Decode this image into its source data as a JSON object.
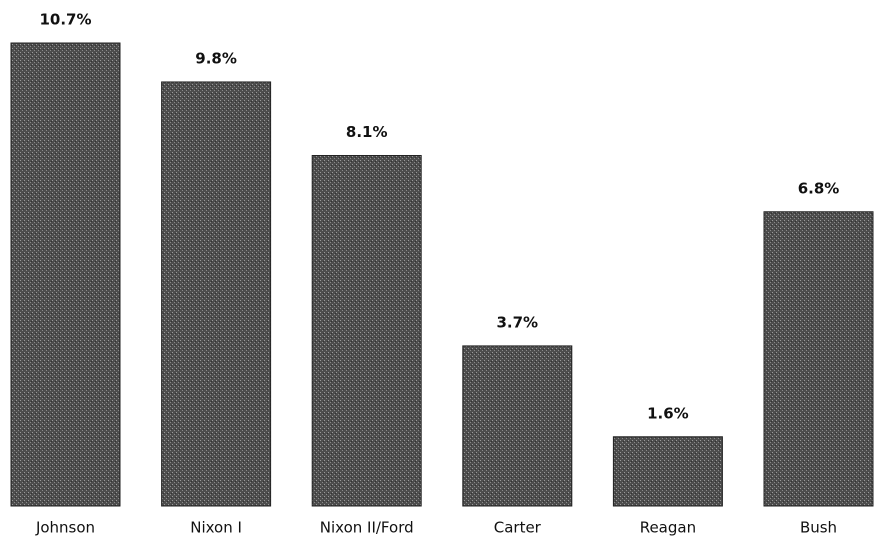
{
  "chart_data": {
    "type": "bar",
    "categories": [
      "Johnson",
      "Nixon I",
      "Nixon II/Ford",
      "Carter",
      "Reagan",
      "Bush"
    ],
    "values": [
      10.7,
      9.8,
      8.1,
      3.7,
      1.6,
      6.8
    ],
    "value_labels": [
      "10.7%",
      "9.8%",
      "8.1%",
      "3.7%",
      "1.6%",
      "6.8%"
    ],
    "color": "#555555"
  }
}
